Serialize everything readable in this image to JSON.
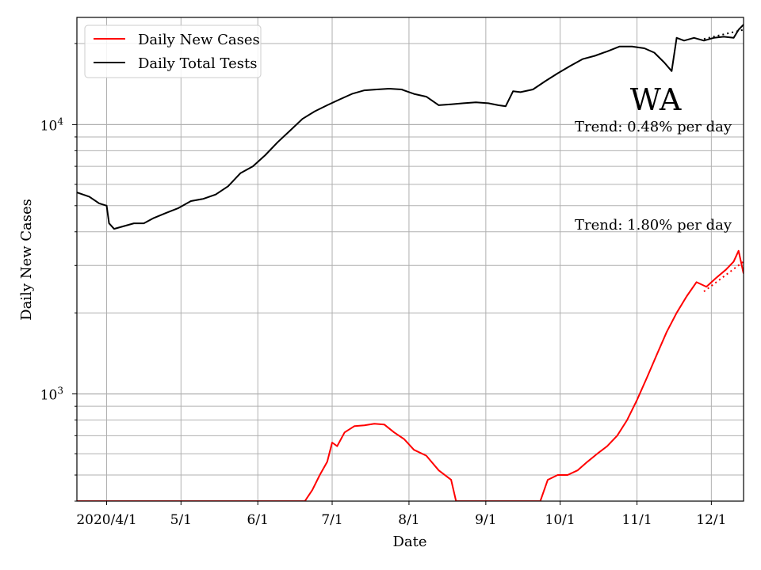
{
  "chart_data": {
    "type": "line",
    "state_label": "WA",
    "xlabel": "Date",
    "ylabel": "Daily New Cases",
    "y_scale": "log",
    "ylim": [
      400,
      25000
    ],
    "xlim": [
      "2020-03-20",
      "2020-12-14"
    ],
    "grid": true,
    "x_ticks": [
      {
        "date": "2020-04-01",
        "label": "2020/4/1"
      },
      {
        "date": "2020-05-01",
        "label": "5/1"
      },
      {
        "date": "2020-06-01",
        "label": "6/1"
      },
      {
        "date": "2020-07-01",
        "label": "7/1"
      },
      {
        "date": "2020-08-01",
        "label": "8/1"
      },
      {
        "date": "2020-09-01",
        "label": "9/1"
      },
      {
        "date": "2020-10-01",
        "label": "10/1"
      },
      {
        "date": "2020-11-01",
        "label": "11/1"
      },
      {
        "date": "2020-12-01",
        "label": "12/1"
      }
    ],
    "y_ticks": [
      {
        "value": 1000,
        "base": "10",
        "exp": "3"
      },
      {
        "value": 10000,
        "base": "10",
        "exp": "4"
      }
    ],
    "legend": {
      "placement": "top-left",
      "entries": [
        {
          "label": "Daily New Cases",
          "color": "#ff0000"
        },
        {
          "label": "Daily Total Tests",
          "color": "#000000"
        }
      ]
    },
    "annotations": [
      {
        "text": "Trend: 0.48% per day",
        "series": "Daily Total Tests"
      },
      {
        "text": "Trend: 1.80% per day",
        "series": "Daily New Cases"
      }
    ],
    "series": [
      {
        "name": "Daily Total Tests",
        "color": "#000000",
        "points": [
          [
            "2020-03-20",
            5600
          ],
          [
            "2020-03-25",
            5400
          ],
          [
            "2020-03-29",
            5100
          ],
          [
            "2020-04-01",
            5000
          ],
          [
            "2020-04-02",
            4300
          ],
          [
            "2020-04-04",
            4100
          ],
          [
            "2020-04-08",
            4200
          ],
          [
            "2020-04-12",
            4300
          ],
          [
            "2020-04-16",
            4300
          ],
          [
            "2020-04-20",
            4500
          ],
          [
            "2020-04-25",
            4700
          ],
          [
            "2020-04-30",
            4900
          ],
          [
            "2020-05-05",
            5200
          ],
          [
            "2020-05-10",
            5300
          ],
          [
            "2020-05-15",
            5500
          ],
          [
            "2020-05-20",
            5900
          ],
          [
            "2020-05-25",
            6600
          ],
          [
            "2020-05-30",
            7000
          ],
          [
            "2020-06-04",
            7700
          ],
          [
            "2020-06-09",
            8600
          ],
          [
            "2020-06-14",
            9500
          ],
          [
            "2020-06-19",
            10500
          ],
          [
            "2020-06-24",
            11200
          ],
          [
            "2020-06-29",
            11800
          ],
          [
            "2020-07-04",
            12400
          ],
          [
            "2020-07-09",
            13000
          ],
          [
            "2020-07-14",
            13400
          ],
          [
            "2020-07-19",
            13500
          ],
          [
            "2020-07-24",
            13600
          ],
          [
            "2020-07-29",
            13500
          ],
          [
            "2020-08-03",
            13000
          ],
          [
            "2020-08-08",
            12700
          ],
          [
            "2020-08-13",
            11800
          ],
          [
            "2020-08-18",
            11900
          ],
          [
            "2020-08-23",
            12000
          ],
          [
            "2020-08-28",
            12100
          ],
          [
            "2020-09-02",
            12000
          ],
          [
            "2020-09-06",
            11800
          ],
          [
            "2020-09-09",
            11700
          ],
          [
            "2020-09-12",
            13300
          ],
          [
            "2020-09-15",
            13200
          ],
          [
            "2020-09-20",
            13500
          ],
          [
            "2020-09-25",
            14500
          ],
          [
            "2020-09-30",
            15500
          ],
          [
            "2020-10-05",
            16500
          ],
          [
            "2020-10-10",
            17500
          ],
          [
            "2020-10-15",
            18000
          ],
          [
            "2020-10-20",
            18700
          ],
          [
            "2020-10-25",
            19500
          ],
          [
            "2020-10-30",
            19500
          ],
          [
            "2020-11-04",
            19200
          ],
          [
            "2020-11-08",
            18500
          ],
          [
            "2020-11-12",
            17000
          ],
          [
            "2020-11-15",
            15800
          ],
          [
            "2020-11-17",
            21000
          ],
          [
            "2020-11-20",
            20500
          ],
          [
            "2020-11-24",
            21000
          ],
          [
            "2020-11-28",
            20500
          ],
          [
            "2020-12-02",
            21000
          ],
          [
            "2020-12-06",
            21200
          ],
          [
            "2020-12-10",
            21000
          ],
          [
            "2020-12-12",
            22500
          ],
          [
            "2020-12-14",
            23500
          ]
        ]
      },
      {
        "name": "Daily New Cases",
        "color": "#ff0000",
        "points": [
          [
            "2020-03-20",
            400
          ],
          [
            "2020-06-20",
            400
          ],
          [
            "2020-06-23",
            440
          ],
          [
            "2020-06-26",
            500
          ],
          [
            "2020-06-29",
            560
          ],
          [
            "2020-07-01",
            660
          ],
          [
            "2020-07-03",
            640
          ],
          [
            "2020-07-06",
            720
          ],
          [
            "2020-07-10",
            760
          ],
          [
            "2020-07-14",
            765
          ],
          [
            "2020-07-18",
            775
          ],
          [
            "2020-07-22",
            770
          ],
          [
            "2020-07-26",
            720
          ],
          [
            "2020-07-30",
            680
          ],
          [
            "2020-08-03",
            620
          ],
          [
            "2020-08-08",
            590
          ],
          [
            "2020-08-13",
            520
          ],
          [
            "2020-08-18",
            480
          ],
          [
            "2020-08-20",
            400
          ],
          [
            "2020-09-23",
            400
          ],
          [
            "2020-09-26",
            480
          ],
          [
            "2020-09-30",
            500
          ],
          [
            "2020-10-04",
            500
          ],
          [
            "2020-10-08",
            520
          ],
          [
            "2020-10-12",
            560
          ],
          [
            "2020-10-16",
            600
          ],
          [
            "2020-10-20",
            640
          ],
          [
            "2020-10-24",
            700
          ],
          [
            "2020-10-28",
            800
          ],
          [
            "2020-11-01",
            950
          ],
          [
            "2020-11-05",
            1150
          ],
          [
            "2020-11-09",
            1400
          ],
          [
            "2020-11-13",
            1700
          ],
          [
            "2020-11-17",
            2000
          ],
          [
            "2020-11-21",
            2300
          ],
          [
            "2020-11-25",
            2600
          ],
          [
            "2020-11-29",
            2500
          ],
          [
            "2020-12-03",
            2700
          ],
          [
            "2020-12-07",
            2900
          ],
          [
            "2020-12-10",
            3100
          ],
          [
            "2020-12-12",
            3400
          ],
          [
            "2020-12-14",
            2800
          ]
        ]
      }
    ],
    "trend_lines": [
      {
        "series": "Daily Total Tests",
        "color": "#000000",
        "start": [
          "2020-11-28",
          20800
        ],
        "end": [
          "2020-12-14",
          22500
        ]
      },
      {
        "series": "Daily New Cases",
        "color": "#ff0000",
        "start": [
          "2020-11-28",
          2400
        ],
        "end": [
          "2020-12-14",
          3100
        ]
      }
    ]
  }
}
